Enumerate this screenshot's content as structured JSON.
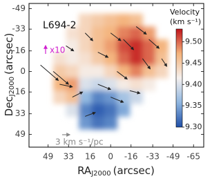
{
  "chart_data": {
    "type": "map",
    "title": "L694-2",
    "x_label": {
      "main": "RA",
      "sub": "J2000",
      "unit": "(arcsec)"
    },
    "y_label": {
      "main": "Dec",
      "sub": "J2000",
      "unit": "(arcsec)"
    },
    "xlim": [
      64,
      -73
    ],
    "ylim": [
      -53,
      59
    ],
    "xticks": [
      49,
      33,
      16,
      0,
      -16,
      -33,
      -49,
      -65
    ],
    "yticks": [
      -49,
      -33,
      -16,
      0,
      16,
      33,
      49
    ],
    "x": [
      40,
      30,
      20,
      10,
      0,
      -10,
      -20,
      -30,
      -40
    ],
    "y": [
      -40,
      -30,
      -20,
      -10,
      0,
      10,
      20,
      30,
      40
    ],
    "values": [
      [
        null,
        null,
        9.44,
        9.45,
        9.46,
        9.47,
        9.46,
        null,
        null
      ],
      [
        null,
        9.43,
        9.44,
        9.46,
        9.47,
        9.49,
        9.5,
        9.48,
        null
      ],
      [
        null,
        9.42,
        9.44,
        9.46,
        9.48,
        9.51,
        9.52,
        9.5,
        9.47
      ],
      [
        9.43,
        9.42,
        9.43,
        9.45,
        9.47,
        9.5,
        9.52,
        9.5,
        9.46
      ],
      [
        9.45,
        9.44,
        9.42,
        9.42,
        9.44,
        9.47,
        9.49,
        9.46,
        9.44
      ],
      [
        9.47,
        9.48,
        9.4,
        9.39,
        9.4,
        9.42,
        9.43,
        9.42,
        null
      ],
      [
        9.44,
        9.46,
        9.36,
        9.33,
        9.34,
        9.37,
        9.39,
        null,
        null
      ],
      [
        null,
        9.4,
        9.33,
        9.31,
        9.32,
        9.35,
        null,
        null,
        null
      ],
      [
        null,
        null,
        9.34,
        9.32,
        9.33,
        null,
        null,
        null,
        null
      ]
    ],
    "vectors": [
      [
        -20,
        -35,
        -8,
        6
      ],
      [
        -30,
        -25,
        -8,
        7
      ],
      [
        -10,
        -25,
        -8,
        8
      ],
      [
        -25,
        -10,
        -6,
        8
      ],
      [
        0,
        -30,
        -8,
        6
      ],
      [
        10,
        -15,
        -8,
        4
      ],
      [
        -5,
        0,
        -8,
        6
      ],
      [
        20,
        -30,
        -6,
        6
      ],
      [
        45,
        0,
        -12,
        10
      ],
      [
        55,
        -5,
        -14,
        12
      ],
      [
        40,
        10,
        -10,
        2
      ],
      [
        30,
        20,
        -8,
        -4
      ],
      [
        10,
        10,
        -10,
        4
      ],
      [
        0,
        20,
        -10,
        4
      ],
      [
        -15,
        15,
        -8,
        2
      ],
      [
        20,
        35,
        -8,
        -3
      ],
      [
        35,
        -20,
        -6,
        4
      ],
      [
        -40,
        -10,
        -4,
        6
      ]
    ],
    "colorbar": {
      "title": "Velocity",
      "unit": "(km s⁻¹)",
      "ylim": [
        9.3,
        9.53
      ],
      "yticks": [
        {
          "value": 9.3,
          "label": "9.30"
        },
        9.35,
        {
          "value": 9.4,
          "label": "9.40"
        },
        9.45,
        {
          "value": 9.5,
          "label": "9.50"
        }
      ]
    },
    "colormap": [
      "#1f4fa8",
      "#8fb6e0",
      "#f5f0ee",
      "#f4b27a",
      "#c0141c"
    ],
    "annotations": {
      "scale_factor": "x10",
      "scale_label": "3 km s⁻¹/pc"
    }
  }
}
